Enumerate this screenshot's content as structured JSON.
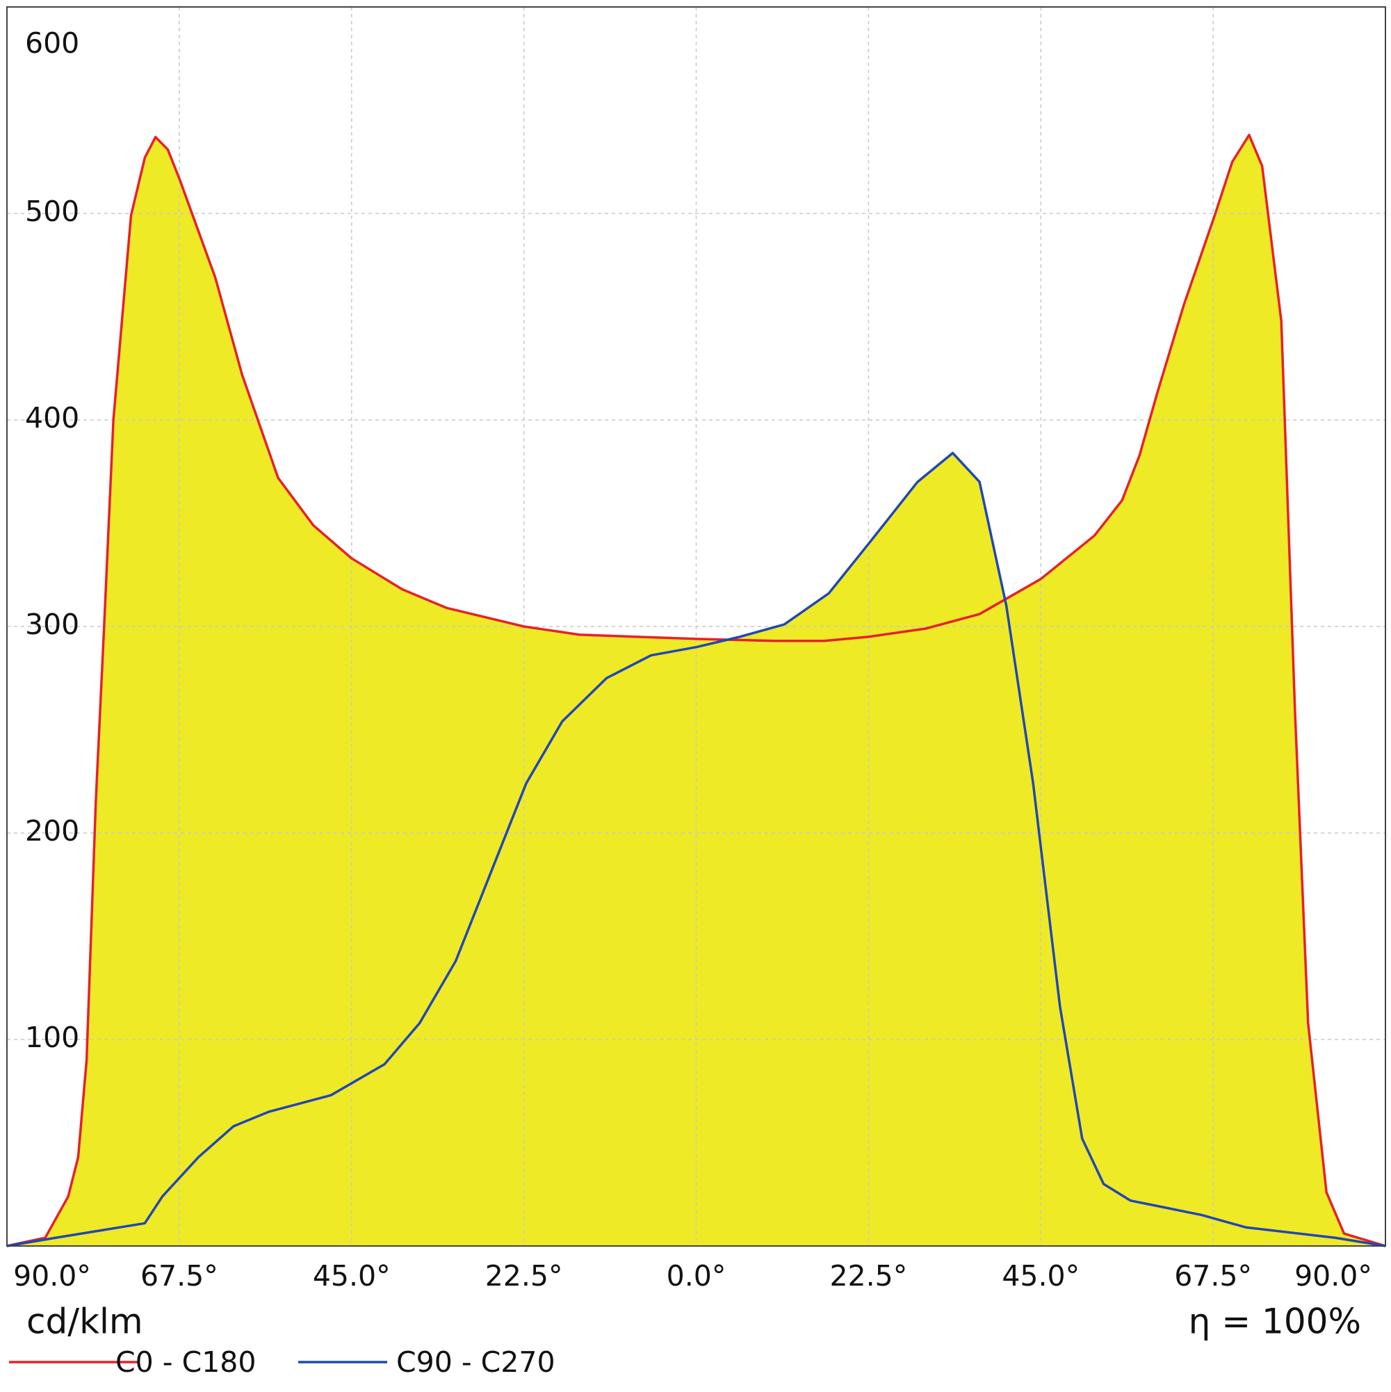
{
  "chart_data": {
    "type": "line",
    "y_label": "cd/klm",
    "annotation": "η = 100%",
    "fill_color": "#eeea26",
    "grid": true,
    "xlim": [
      -90,
      90
    ],
    "ylim": [
      0,
      600
    ],
    "xticks": [
      {
        "value": -90,
        "label": "90.0°"
      },
      {
        "value": -67.5,
        "label": "67.5°"
      },
      {
        "value": -45,
        "label": "45.0°"
      },
      {
        "value": -22.5,
        "label": "22.5°"
      },
      {
        "value": 0,
        "label": "0.0°"
      },
      {
        "value": 22.5,
        "label": "22.5°"
      },
      {
        "value": 45,
        "label": "45.0°"
      },
      {
        "value": 67.5,
        "label": "67.5°"
      },
      {
        "value": 90,
        "label": "90.0°"
      }
    ],
    "yticks": [
      100,
      200,
      300,
      400,
      500,
      600
    ],
    "series": [
      {
        "name": "C0 - C180",
        "color": "#e8202a",
        "x": [
          -90,
          -85,
          -82,
          -80.7,
          -79.6,
          -78.4,
          -77.3,
          -76.1,
          -73.8,
          -72,
          -70.6,
          -69,
          -67.4,
          -62.8,
          -59.3,
          -54.6,
          -50,
          -45,
          -38.4,
          -32.6,
          -22.5,
          -15.2,
          0,
          10.3,
          16.7,
          22.5,
          30,
          37,
          45,
          52,
          55.6,
          57.9,
          60.2,
          63.7,
          67.7,
          70,
          72.2,
          73.9,
          76.4,
          78.2,
          79.9,
          82.3,
          84.6,
          90
        ],
        "values": [
          0,
          4,
          24,
          43,
          90,
          215,
          301,
          400,
          499,
          527,
          537,
          531,
          516,
          469,
          422,
          372,
          349,
          333,
          318,
          309,
          300,
          296,
          294,
          293,
          293,
          295,
          299,
          306,
          323,
          344,
          361,
          383,
          413,
          456,
          499,
          525,
          538,
          523,
          448,
          258,
          108,
          26,
          6,
          0
        ]
      },
      {
        "name": "C90 - C270",
        "color": "#2046b8",
        "x": [
          -90,
          -83.6,
          -72,
          -69.7,
          -65,
          -60.4,
          -55.8,
          -47.7,
          -40.7,
          -36.1,
          -31.4,
          -26.8,
          -22.2,
          -17.5,
          -11.7,
          -5.9,
          0,
          5.7,
          11.5,
          17.3,
          22.5,
          28.9,
          33.5,
          37,
          40.5,
          44,
          47.5,
          50.4,
          53.2,
          56.7,
          66,
          71.8,
          83.4,
          90
        ],
        "values": [
          0,
          4,
          11,
          24,
          43,
          58,
          65,
          73,
          88,
          108,
          138,
          181,
          224,
          254,
          275,
          286,
          290,
          295,
          301,
          316,
          340,
          370,
          384,
          370,
          310,
          224,
          116,
          52,
          30,
          22,
          15,
          9,
          4,
          0
        ]
      }
    ]
  }
}
